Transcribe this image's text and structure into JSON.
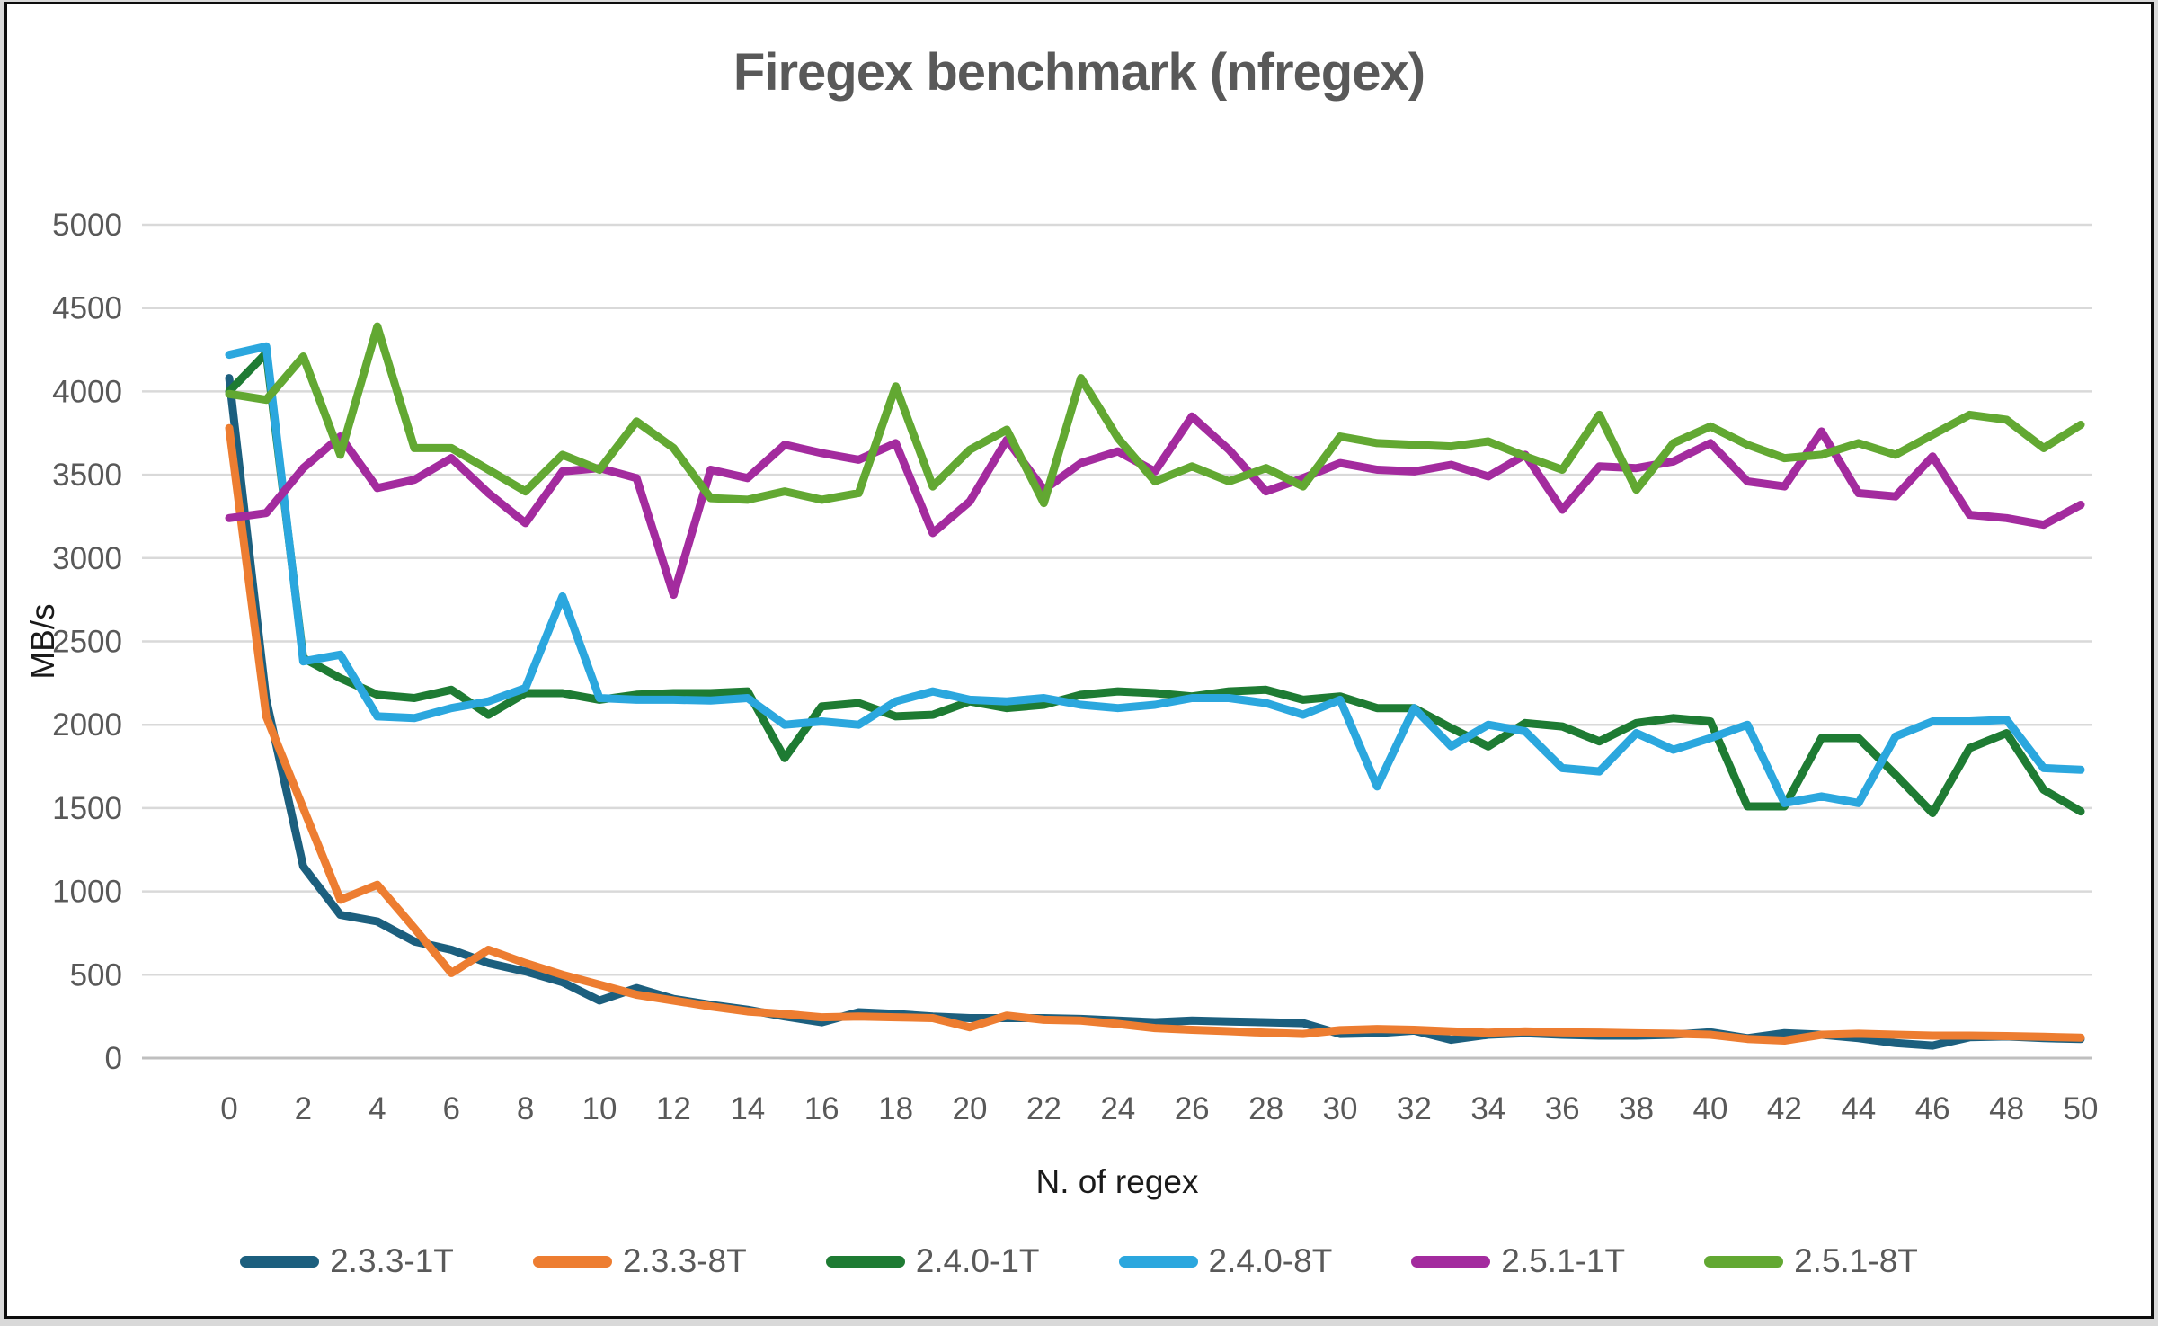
{
  "palette": {
    "background": "#ffffff",
    "frame_border": "#0d0d0d",
    "grid_color": "#d9d9d9",
    "axis_line_color": "#bfbfbf",
    "tick_label_color": "#595959",
    "axis_title_color": "#1a1a1a",
    "title_color": "#595959"
  },
  "chart_data": {
    "type": "line",
    "title": "Firegex benchmark (nfregex)",
    "xlabel": "N. of regex",
    "ylabel": "MB/s",
    "ylim": [
      0,
      5000
    ],
    "ytick_step": 500,
    "xlim": [
      0,
      50
    ],
    "xtick_step": 2,
    "grid": true,
    "legend_position": "bottom",
    "x": [
      0,
      1,
      2,
      3,
      4,
      5,
      6,
      7,
      8,
      9,
      10,
      11,
      12,
      13,
      14,
      15,
      16,
      17,
      18,
      19,
      20,
      21,
      22,
      23,
      24,
      25,
      26,
      27,
      28,
      29,
      30,
      31,
      32,
      33,
      34,
      35,
      36,
      37,
      38,
      39,
      40,
      41,
      42,
      43,
      44,
      45,
      46,
      47,
      48,
      49,
      50
    ],
    "series": [
      {
        "name": "2.3.3-1T",
        "color": "#1c5f7e",
        "values": [
          4080,
          2150,
          1150,
          860,
          820,
          700,
          650,
          570,
          520,
          455,
          345,
          420,
          355,
          320,
          290,
          250,
          215,
          275,
          265,
          250,
          240,
          240,
          240,
          235,
          225,
          215,
          225,
          220,
          215,
          210,
          145,
          150,
          165,
          110,
          140,
          150,
          140,
          135,
          135,
          140,
          155,
          120,
          150,
          140,
          120,
          90,
          75,
          125,
          130,
          120,
          115
        ]
      },
      {
        "name": "2.3.3-8T",
        "color": "#ed7d31",
        "values": [
          3780,
          2050,
          1500,
          950,
          1040,
          780,
          510,
          650,
          570,
          500,
          440,
          380,
          345,
          310,
          280,
          265,
          245,
          250,
          245,
          240,
          185,
          255,
          230,
          225,
          205,
          180,
          170,
          162,
          152,
          145,
          168,
          175,
          170,
          160,
          152,
          160,
          154,
          153,
          149,
          146,
          140,
          115,
          105,
          140,
          146,
          140,
          135,
          135,
          132,
          128,
          123
        ]
      },
      {
        "name": "2.4.0-1T",
        "color": "#1e7b33",
        "values": [
          4000,
          4230,
          2400,
          2280,
          2180,
          2160,
          2210,
          2060,
          2190,
          2190,
          2150,
          2180,
          2190,
          2190,
          2200,
          1800,
          2110,
          2130,
          2050,
          2060,
          2140,
          2100,
          2120,
          2180,
          2200,
          2190,
          2170,
          2200,
          2210,
          2150,
          2170,
          2100,
          2100,
          1980,
          1870,
          2010,
          1990,
          1900,
          2010,
          2040,
          2020,
          1510,
          1510,
          1920,
          1920,
          1700,
          1470,
          1860,
          1950,
          1610,
          1480
        ]
      },
      {
        "name": "2.4.0-8T",
        "color": "#2ba7de",
        "values": [
          4220,
          4270,
          2380,
          2420,
          2050,
          2040,
          2100,
          2140,
          2220,
          2770,
          2160,
          2150,
          2150,
          2145,
          2160,
          2000,
          2020,
          2000,
          2140,
          2200,
          2150,
          2140,
          2160,
          2120,
          2100,
          2120,
          2160,
          2160,
          2130,
          2060,
          2150,
          1630,
          2100,
          1870,
          2000,
          1960,
          1740,
          1720,
          1950,
          1850,
          1920,
          2000,
          1530,
          1570,
          1530,
          1930,
          2020,
          2020,
          2030,
          1740,
          1730
        ]
      },
      {
        "name": "2.5.1-1T",
        "color": "#a32b9e",
        "values": [
          3240,
          3270,
          3540,
          3730,
          3420,
          3470,
          3600,
          3390,
          3210,
          3520,
          3540,
          3480,
          2780,
          3530,
          3480,
          3680,
          3630,
          3590,
          3690,
          3150,
          3340,
          3710,
          3410,
          3570,
          3640,
          3520,
          3850,
          3650,
          3400,
          3480,
          3570,
          3530,
          3520,
          3560,
          3490,
          3620,
          3290,
          3550,
          3540,
          3580,
          3690,
          3460,
          3430,
          3760,
          3390,
          3370,
          3610,
          3260,
          3240,
          3200,
          3320
        ]
      },
      {
        "name": "2.5.1-8T",
        "color": "#62a832",
        "values": [
          3985,
          3950,
          4210,
          3620,
          4390,
          3660,
          3660,
          3530,
          3400,
          3620,
          3530,
          3820,
          3660,
          3360,
          3350,
          3400,
          3350,
          3390,
          4030,
          3430,
          3650,
          3770,
          3330,
          4080,
          3720,
          3460,
          3550,
          3460,
          3540,
          3430,
          3730,
          3690,
          3680,
          3670,
          3700,
          3610,
          3530,
          3860,
          3410,
          3690,
          3790,
          3680,
          3600,
          3620,
          3690,
          3620,
          3740,
          3860,
          3830,
          3660,
          3800
        ]
      }
    ]
  }
}
